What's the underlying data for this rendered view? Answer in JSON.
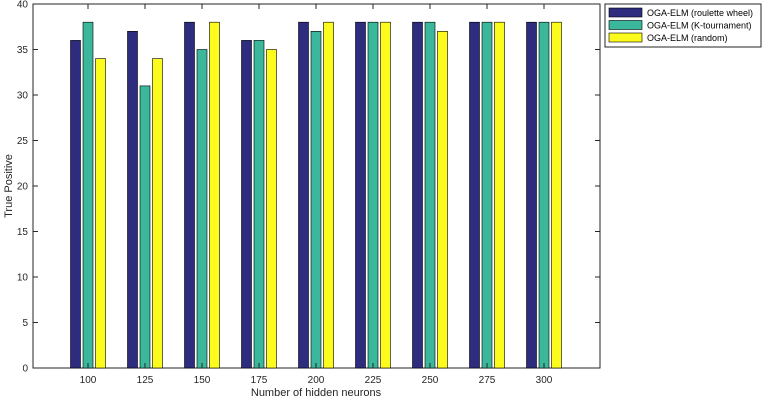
{
  "chart_data": {
    "type": "bar",
    "xlabel": "Number of hidden neurons",
    "ylabel": "True Positive",
    "categories": [
      "100",
      "125",
      "150",
      "175",
      "200",
      "225",
      "250",
      "275",
      "300"
    ],
    "series": [
      {
        "name": "OGA-ELM (roulette wheel)",
        "color": "#2e2c7f",
        "values": [
          36,
          37,
          38,
          36,
          38,
          38,
          38,
          38,
          38
        ]
      },
      {
        "name": "OGA-ELM (K-tournament)",
        "color": "#3bb79c",
        "values": [
          38,
          31,
          35,
          36,
          37,
          38,
          38,
          38,
          38
        ]
      },
      {
        "name": "OGA-ELM (random)",
        "color": "#fbfb1d",
        "values": [
          34,
          34,
          38,
          35,
          38,
          38,
          37,
          38,
          38
        ]
      }
    ],
    "ylim": [
      0,
      40
    ],
    "yticks": [
      0,
      5,
      10,
      15,
      20,
      25,
      30,
      35,
      40
    ],
    "grid": false,
    "legend_position": "outside-top-right"
  }
}
